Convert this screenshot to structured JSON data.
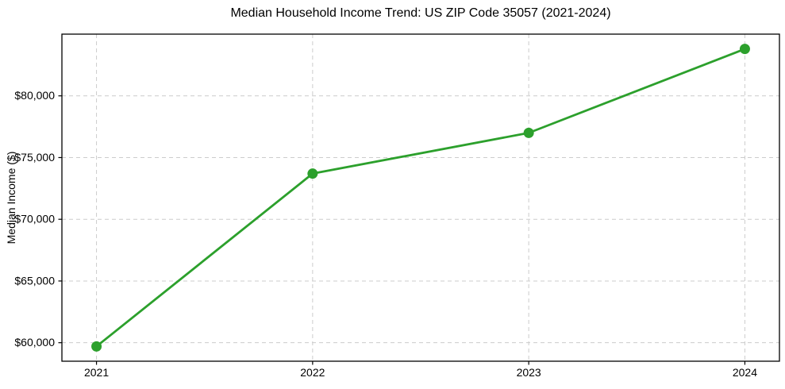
{
  "chart_data": {
    "type": "line",
    "title": "Median Household Income Trend: US ZIP Code 35057 (2021-2024)",
    "xlabel": "",
    "ylabel": "Median Income ($)",
    "x": [
      2021,
      2022,
      2023,
      2024
    ],
    "x_tick_labels": [
      "2021",
      "2022",
      "2023",
      "2024"
    ],
    "series": [
      {
        "name": "Median Household Income",
        "values": [
          59700,
          73700,
          77000,
          83800
        ],
        "color": "#2ca02c",
        "marker": "circle"
      }
    ],
    "y_ticks": [
      60000,
      65000,
      70000,
      75000,
      80000
    ],
    "y_tick_labels": [
      "$60,000",
      "$65,000",
      "$70,000",
      "$75,000",
      "$80,000"
    ],
    "xlim": [
      2020.84,
      2024.16
    ],
    "ylim": [
      58500,
      85000
    ],
    "grid": true,
    "grid_style": "dashed",
    "grid_color": "#cccccc",
    "spine_color": "#000000",
    "text_color": "#000000",
    "background_color": "#ffffff",
    "legend_position": "none"
  }
}
